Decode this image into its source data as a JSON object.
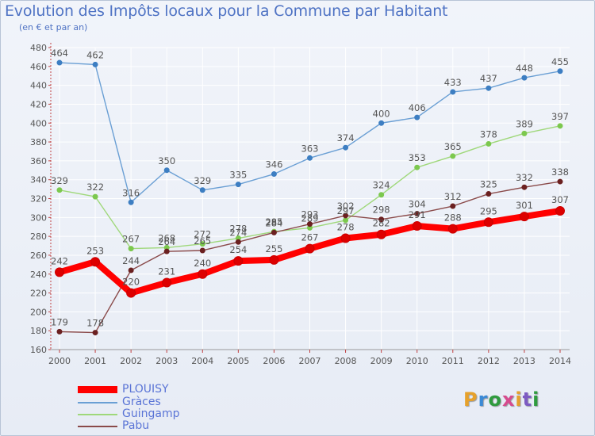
{
  "title": "Evolution des Impôts locaux pour la Commune par Habitant",
  "subtitle": "(en € et par an)",
  "brand": {
    "letters": [
      "P",
      "r",
      "o",
      "x",
      "i",
      "t",
      "i"
    ],
    "colors": [
      "#e6a12b",
      "#3b8ad6",
      "#2f9b3e",
      "#d64b8e",
      "#e6a12b",
      "#7d5bc2",
      "#2f9b3e"
    ]
  },
  "chart_data": {
    "type": "line",
    "title": "Evolution des Impôts locaux pour la Commune par Habitant",
    "ylabel": "",
    "xlabel": "",
    "x": [
      "2000",
      "2001",
      "2002",
      "2003",
      "2004",
      "2005",
      "2006",
      "2007",
      "2008",
      "2009",
      "2010",
      "2011",
      "2012",
      "2013",
      "2014"
    ],
    "ylim": [
      160,
      480
    ],
    "yticks": [
      160,
      180,
      200,
      220,
      240,
      260,
      280,
      300,
      320,
      340,
      360,
      380,
      400,
      420,
      440,
      460,
      480
    ],
    "grid": true,
    "legend_position": "bottom-left",
    "series": [
      {
        "name": "Gràces",
        "color": "#6a9fd4",
        "marker": "#3d7ec2",
        "values": [
          464,
          462,
          316,
          350,
          329,
          335,
          346,
          363,
          374,
          400,
          406,
          433,
          437,
          448,
          455
        ]
      },
      {
        "name": "Guingamp",
        "color": "#9fd87a",
        "marker": "#7cc84e",
        "values": [
          329,
          322,
          267,
          268,
          272,
          278,
          285,
          289,
          297,
          324,
          353,
          365,
          378,
          389,
          397
        ]
      },
      {
        "name": "Pabu",
        "color": "#8a4a4a",
        "marker": "#6b2020",
        "values": [
          179,
          178,
          244,
          264,
          265,
          274,
          284,
          293,
          302,
          298,
          304,
          312,
          325,
          332,
          338
        ]
      },
      {
        "name": "PLOUISY",
        "color": "#ff0000",
        "marker": "#dd0000",
        "values": [
          242,
          253,
          220,
          231,
          240,
          254,
          255,
          267,
          278,
          282,
          291,
          288,
          295,
          301,
          307
        ]
      }
    ]
  },
  "legend": [
    {
      "name": "PLOUISY",
      "color": "#ff0000"
    },
    {
      "name": "Gràces",
      "color": "#6a9fd4"
    },
    {
      "name": "Guingamp",
      "color": "#9fd87a"
    },
    {
      "name": "Pabu",
      "color": "#8a4a4a"
    }
  ]
}
